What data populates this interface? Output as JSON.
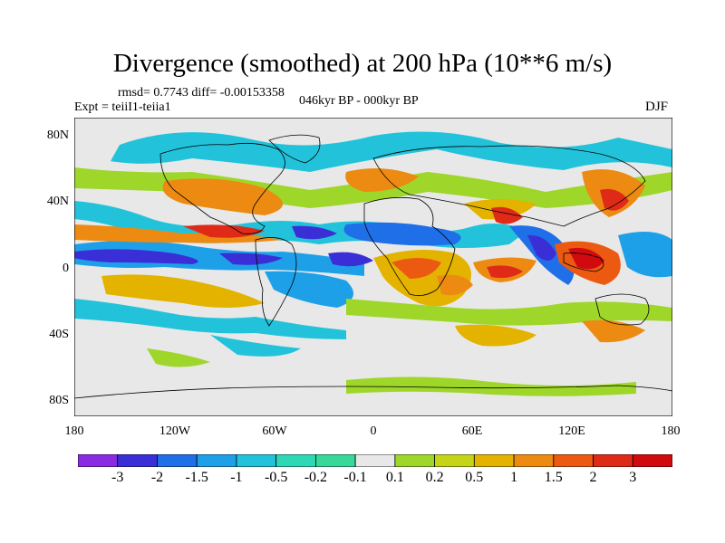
{
  "figure": {
    "title": "Divergence (smoothed) at 200 hPa (10**6 m/s)",
    "stats": "rmsd= 0.7743 diff= -0.00153358",
    "experiment": "Expt = teiiI1-teiia1",
    "period": "046kyr BP - 000kyr BP",
    "season": "DJF"
  },
  "axes": {
    "lat_labels": [
      "80N",
      "40N",
      "0",
      "40S",
      "80S"
    ],
    "lon_labels": [
      "180",
      "120W",
      "60W",
      "0",
      "60E",
      "120E",
      "180"
    ]
  },
  "colorbar": {
    "labels": [
      "-3",
      "-2",
      "-1.5",
      "-1",
      "-0.5",
      "-0.2",
      "-0.1",
      "0.1",
      "0.2",
      "0.5",
      "1",
      "1.5",
      "2",
      "3"
    ],
    "colors": [
      "#8a2be2",
      "#3a2fd6",
      "#1f6fe8",
      "#1ea0e8",
      "#22c3da",
      "#2fd8b4",
      "#38d89a",
      "#e8e8e8",
      "#9ed62a",
      "#c6d417",
      "#e3b300",
      "#ec8a12",
      "#ec5a12",
      "#e02a18",
      "#d10a10"
    ]
  },
  "map_features": {
    "regions": [
      {
        "name": "pacific-equatorial-convergence",
        "class": -2
      },
      {
        "name": "atlantic-equatorial-convergence",
        "class": -1.5
      },
      {
        "name": "africa-divergence",
        "class": 1.5
      },
      {
        "name": "maritime-continent-divergence",
        "class": 3
      },
      {
        "name": "indian-ocean-convergence",
        "class": -2
      },
      {
        "name": "east-asia-divergence",
        "class": 2
      }
    ]
  }
}
